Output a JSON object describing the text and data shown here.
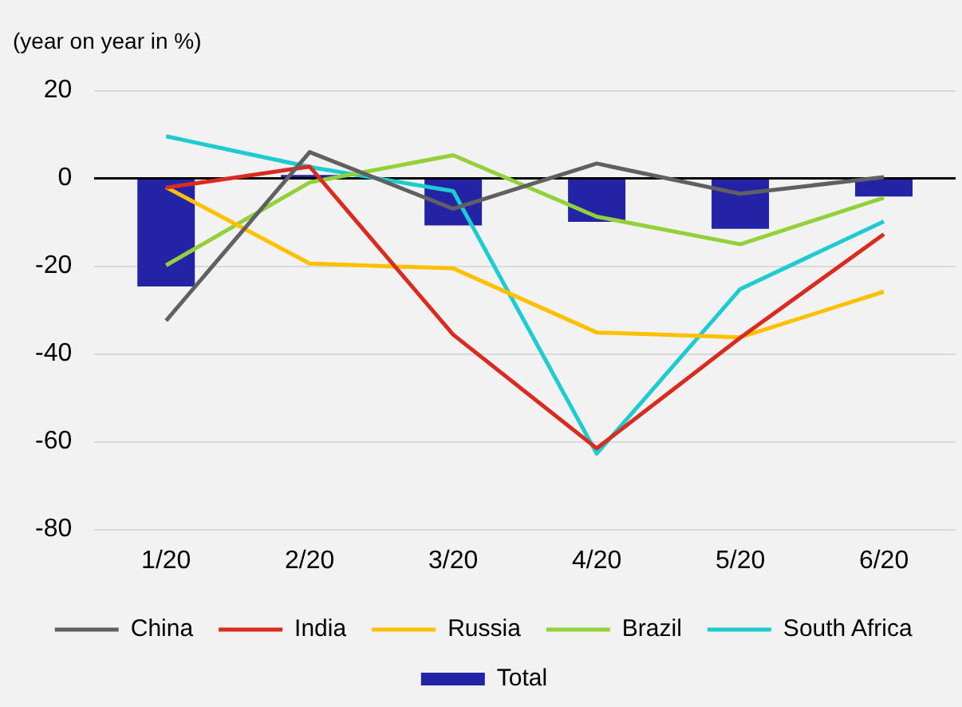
{
  "chart_data": {
    "type": "bar",
    "title": "(year on year in %)",
    "categories": [
      "1/20",
      "2/20",
      "3/20",
      "4/20",
      "5/20",
      "6/20"
    ],
    "series": [
      {
        "name": "Total",
        "color": "#2323a6",
        "values": [
          -24.6,
          0.8,
          -10.7,
          -9.9,
          -11.5,
          -4.1
        ]
      },
      {
        "name": "China",
        "type": "line",
        "color": "#606060",
        "values": [
          -32.4,
          6,
          -6.9,
          3.4,
          -3.5,
          0.3
        ]
      },
      {
        "name": "India",
        "type": "line",
        "color": "#d92b1f",
        "values": [
          -2.1,
          2.7,
          -35.6,
          -61.5,
          -36.3,
          -12.7
        ]
      },
      {
        "name": "Russia",
        "type": "line",
        "color": "#ffc000",
        "values": [
          -2,
          -19.4,
          -20.5,
          -35.1,
          -36.2,
          -25.8
        ]
      },
      {
        "name": "Brazil",
        "type": "line",
        "color": "#92d13a",
        "values": [
          -19.8,
          -0.9,
          5.3,
          -8.7,
          -15,
          -4.4
        ]
      },
      {
        "name": "South Africa",
        "type": "line",
        "color": "#1ecbd0",
        "values": [
          9.6,
          2.6,
          -2.9,
          -62.7,
          -25.2,
          -9.8
        ]
      }
    ],
    "ylim": [
      -80,
      20
    ],
    "yticks": [
      -80,
      -60,
      -40,
      -20,
      0,
      20
    ],
    "grid": "y",
    "legend": "bottom",
    "marker": "none"
  }
}
